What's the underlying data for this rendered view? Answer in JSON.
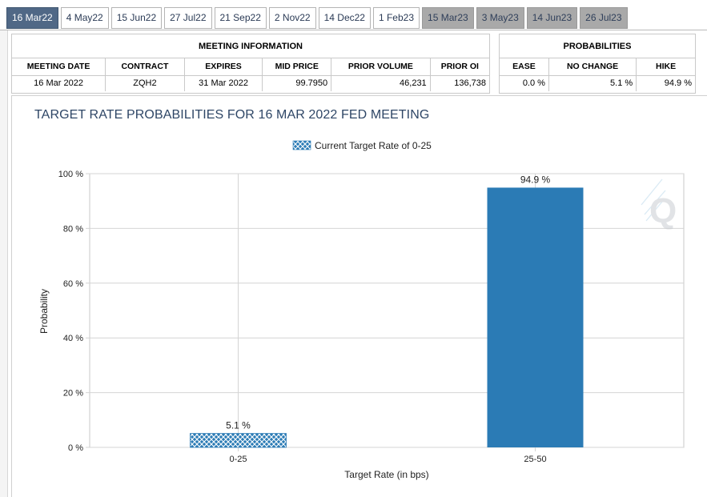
{
  "tabs": [
    {
      "label": "16 Mar22",
      "state": "active"
    },
    {
      "label": "4 May22",
      "state": "normal"
    },
    {
      "label": "15 Jun22",
      "state": "normal"
    },
    {
      "label": "27 Jul22",
      "state": "normal"
    },
    {
      "label": "21 Sep22",
      "state": "normal"
    },
    {
      "label": "2 Nov22",
      "state": "normal"
    },
    {
      "label": "14 Dec22",
      "state": "normal"
    },
    {
      "label": "1 Feb23",
      "state": "normal"
    },
    {
      "label": "15 Mar23",
      "state": "dim"
    },
    {
      "label": "3 May23",
      "state": "dim"
    },
    {
      "label": "14 Jun23",
      "state": "dim"
    },
    {
      "label": "26 Jul23",
      "state": "dim"
    }
  ],
  "meeting_info": {
    "title": "MEETING INFORMATION",
    "headers": [
      "MEETING DATE",
      "CONTRACT",
      "EXPIRES",
      "MID PRICE",
      "PRIOR VOLUME",
      "PRIOR OI"
    ],
    "row": [
      "16 Mar 2022",
      "ZQH2",
      "31 Mar 2022",
      "99.7950",
      "46,231",
      "136,738"
    ]
  },
  "probabilities": {
    "title": "PROBABILITIES",
    "headers": [
      "EASE",
      "NO CHANGE",
      "HIKE"
    ],
    "row": [
      "0.0 %",
      "5.1 %",
      "94.9 %"
    ]
  },
  "colors": {
    "bar": "#2b7bb5",
    "title": "#2e4666",
    "grid": "#d4d4d4",
    "active_tab": "#506886",
    "dim_tab": "#a9a9a9"
  },
  "chart_data": {
    "type": "bar",
    "title": "TARGET RATE PROBABILITIES FOR 16 MAR 2022 FED MEETING",
    "xlabel": "Target Rate (in bps)",
    "ylabel": "Probability",
    "categories": [
      "0-25",
      "25-50"
    ],
    "values": [
      5.1,
      94.9
    ],
    "value_labels": [
      "5.1 %",
      "94.9 %"
    ],
    "highlight_category": "0-25",
    "legend": [
      "Current Target Rate of 0-25"
    ],
    "legend_position": "top-center",
    "ylim": [
      0,
      100
    ],
    "yticks": [
      0,
      20,
      40,
      60,
      80,
      100
    ],
    "ytick_labels": [
      "0 %",
      "20 %",
      "40 %",
      "60 %",
      "80 %",
      "100 %"
    ],
    "grid": true
  }
}
